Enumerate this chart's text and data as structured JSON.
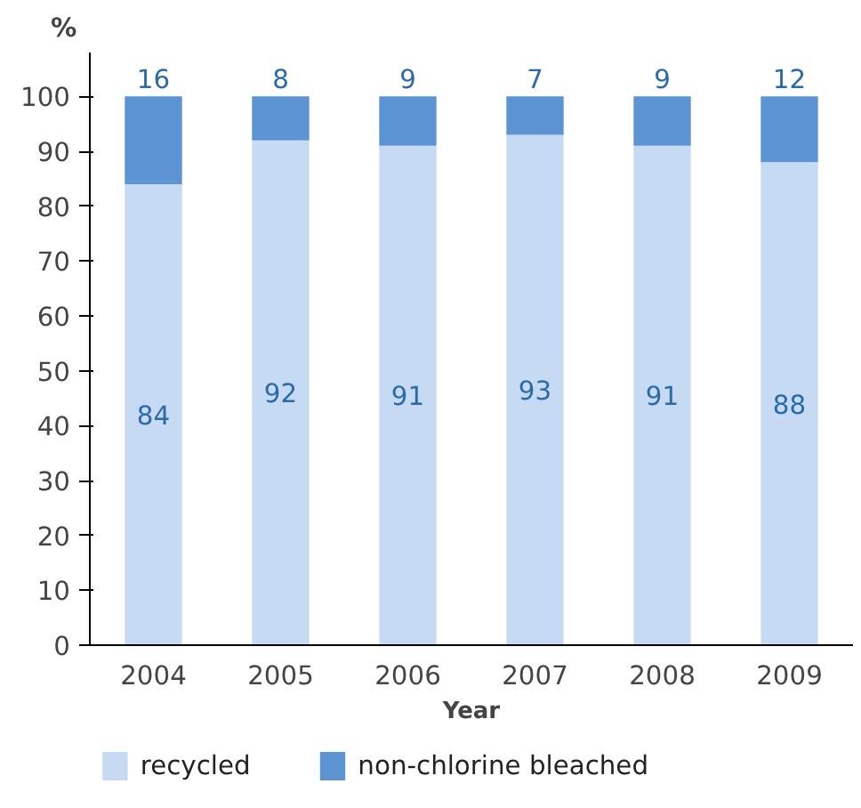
{
  "chart_data": {
    "type": "bar",
    "stacked": true,
    "xlabel": "Year",
    "ylabel": "%",
    "categories": [
      "2004",
      "2005",
      "2006",
      "2007",
      "2008",
      "2009"
    ],
    "series": [
      {
        "name": "recycled",
        "color": "#c6dbf3",
        "values": [
          84,
          92,
          91,
          93,
          91,
          88
        ]
      },
      {
        "name": "non-chlorine bleached",
        "color": "#5b93d3",
        "values": [
          16,
          8,
          9,
          7,
          9,
          12
        ]
      }
    ],
    "ylim": [
      0,
      108
    ],
    "yticks": [
      0,
      10,
      20,
      30,
      40,
      50,
      60,
      70,
      80,
      90,
      100
    ],
    "data_labels": true,
    "legend": "bottom",
    "grid": false
  }
}
